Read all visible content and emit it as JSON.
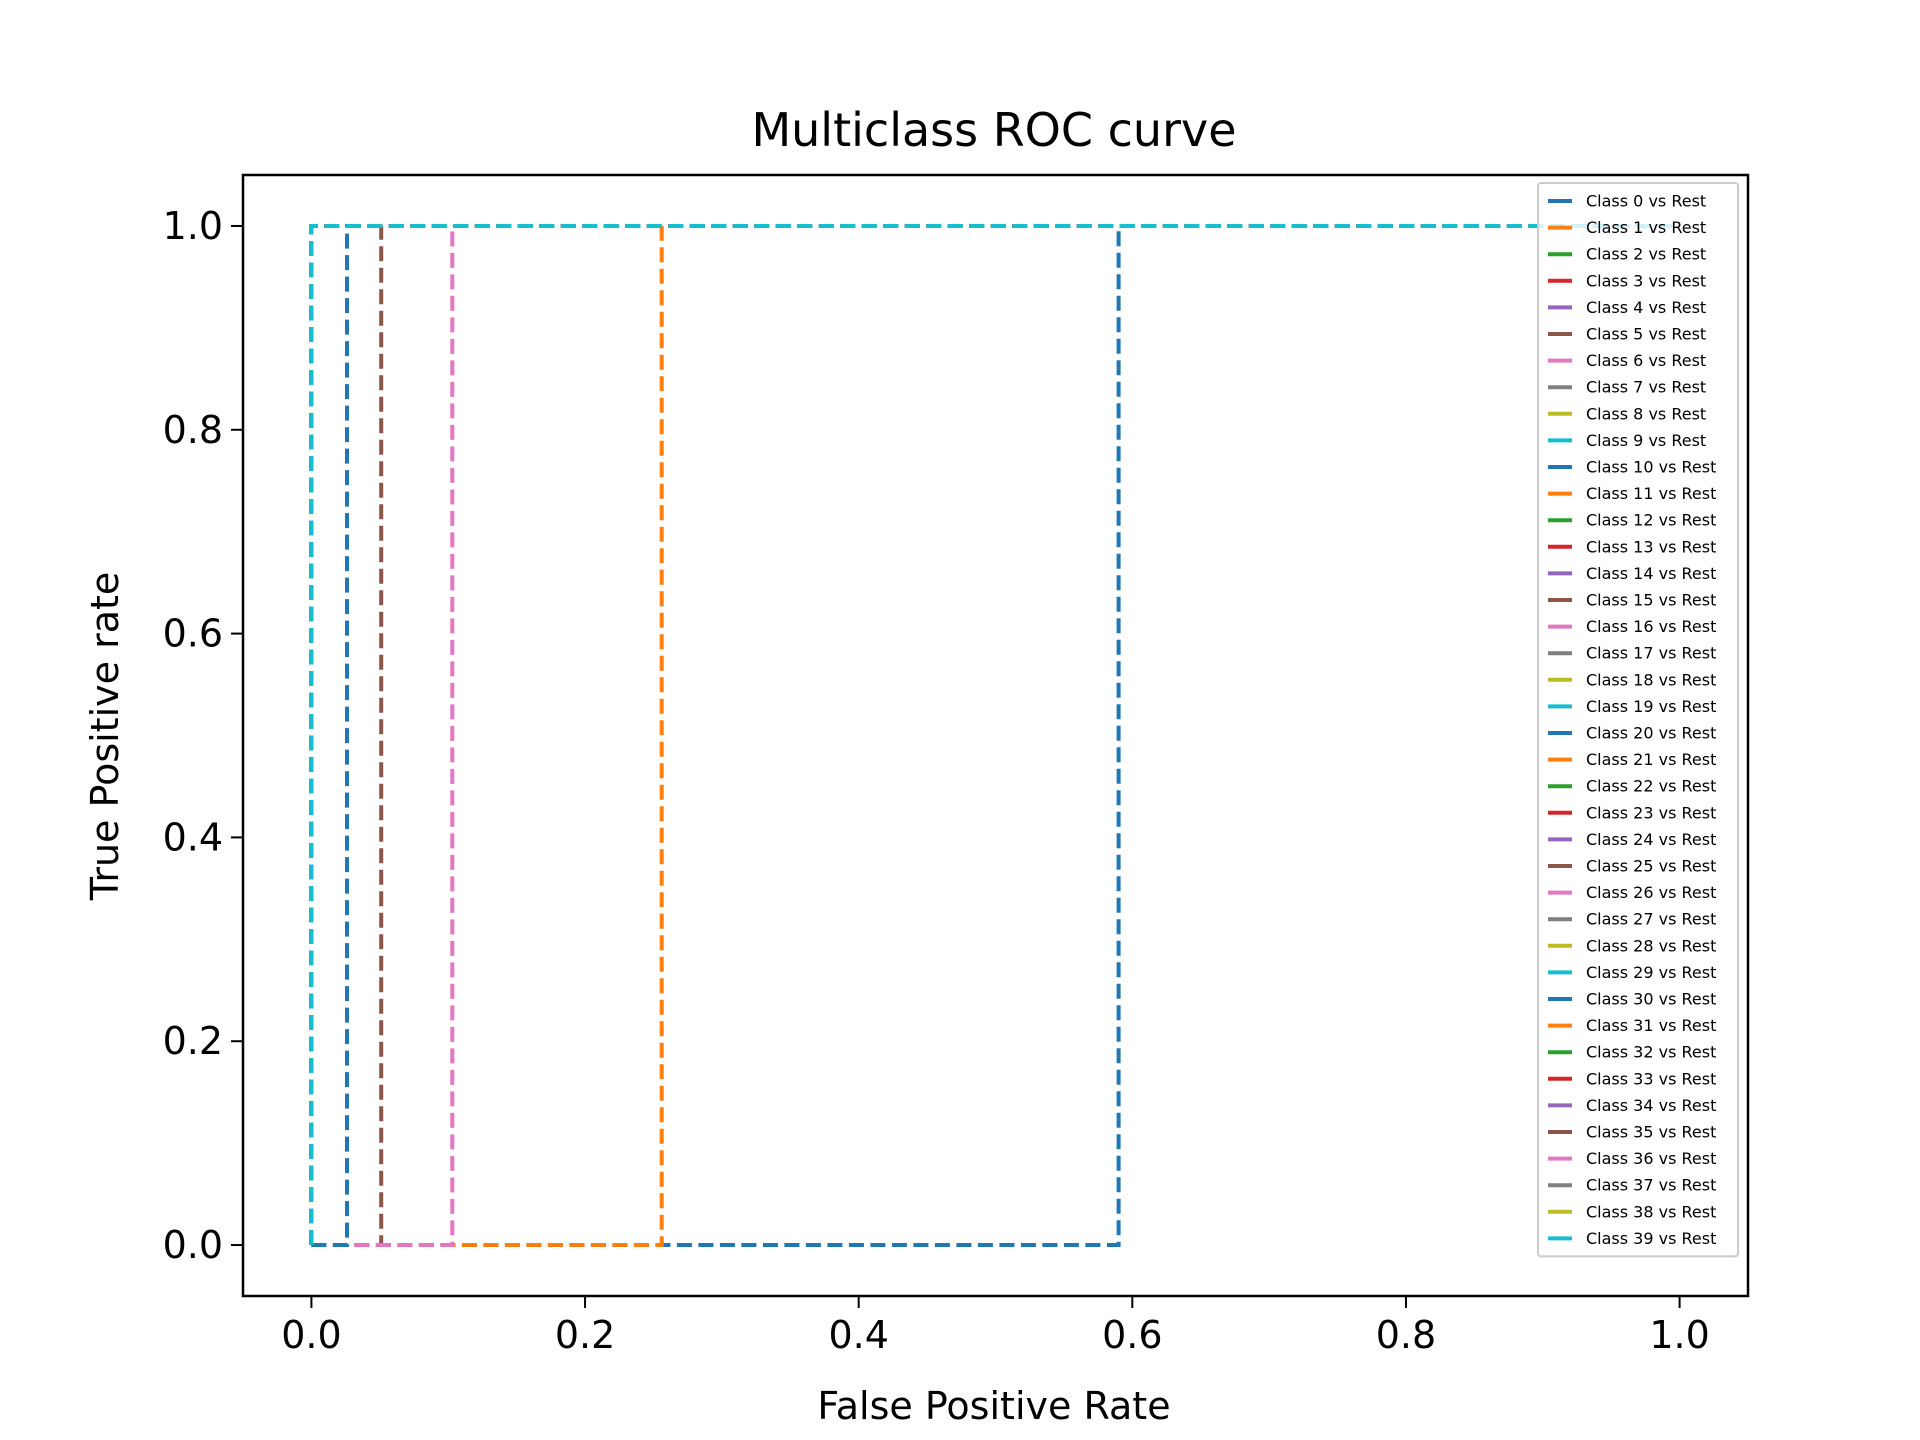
{
  "chart_data": {
    "type": "line",
    "title": "Multiclass ROC curve",
    "xlabel": "False Positive Rate",
    "ylabel": "True Positive rate",
    "xlim": [
      -0.05,
      1.05
    ],
    "ylim": [
      -0.05,
      1.05
    ],
    "xticks": [
      "0.0",
      "0.2",
      "0.4",
      "0.6",
      "0.8",
      "1.0"
    ],
    "yticks": [
      "0.0",
      "0.2",
      "0.4",
      "0.6",
      "0.8",
      "1.0"
    ],
    "grid": false,
    "legend_position": "top-right",
    "line_style": "dashed",
    "palette": [
      "#1f77b4",
      "#ff7f0e",
      "#2ca02c",
      "#d62728",
      "#9467bd",
      "#8c564b",
      "#e377c2",
      "#7f7f7f",
      "#bcbd22",
      "#17becf"
    ],
    "series": [
      {
        "name": "Class 0 vs Rest",
        "x": [
          0,
          0.59,
          0.59,
          1
        ],
        "y": [
          0,
          0,
          1,
          1
        ]
      },
      {
        "name": "Class 1 vs Rest",
        "x": [
          0,
          0.256,
          0.256,
          1
        ],
        "y": [
          0,
          0,
          1,
          1
        ]
      },
      {
        "name": "Class 2 vs Rest",
        "x": [
          0,
          0,
          1
        ],
        "y": [
          0,
          1,
          1
        ]
      },
      {
        "name": "Class 3 vs Rest",
        "x": [
          0,
          0,
          1
        ],
        "y": [
          0,
          1,
          1
        ]
      },
      {
        "name": "Class 4 vs Rest",
        "x": [
          0,
          0,
          1
        ],
        "y": [
          0,
          1,
          1
        ]
      },
      {
        "name": "Class 5 vs Rest",
        "x": [
          0,
          0.051,
          0.051,
          1
        ],
        "y": [
          0,
          0,
          1,
          1
        ]
      },
      {
        "name": "Class 6 vs Rest",
        "x": [
          0,
          0.103,
          0.103,
          1
        ],
        "y": [
          0,
          0,
          1,
          1
        ]
      },
      {
        "name": "Class 7 vs Rest",
        "x": [
          0,
          0,
          1
        ],
        "y": [
          0,
          1,
          1
        ]
      },
      {
        "name": "Class 8 vs Rest",
        "x": [
          0,
          0,
          1
        ],
        "y": [
          0,
          1,
          1
        ]
      },
      {
        "name": "Class 9 vs Rest",
        "x": [
          0,
          0,
          1
        ],
        "y": [
          0,
          1,
          1
        ]
      },
      {
        "name": "Class 10 vs Rest",
        "x": [
          0,
          0.026,
          0.026,
          1
        ],
        "y": [
          0,
          0,
          1,
          1
        ]
      },
      {
        "name": "Class 11 vs Rest",
        "x": [
          0,
          0,
          1
        ],
        "y": [
          0,
          1,
          1
        ]
      },
      {
        "name": "Class 12 vs Rest",
        "x": [
          0,
          0,
          1
        ],
        "y": [
          0,
          1,
          1
        ]
      },
      {
        "name": "Class 13 vs Rest",
        "x": [
          0,
          0,
          1
        ],
        "y": [
          0,
          1,
          1
        ]
      },
      {
        "name": "Class 14 vs Rest",
        "x": [
          0,
          0,
          1
        ],
        "y": [
          0,
          1,
          1
        ]
      },
      {
        "name": "Class 15 vs Rest",
        "x": [
          0,
          0,
          1
        ],
        "y": [
          0,
          1,
          1
        ]
      },
      {
        "name": "Class 16 vs Rest",
        "x": [
          0,
          0,
          1
        ],
        "y": [
          0,
          1,
          1
        ]
      },
      {
        "name": "Class 17 vs Rest",
        "x": [
          0,
          0,
          1
        ],
        "y": [
          0,
          1,
          1
        ]
      },
      {
        "name": "Class 18 vs Rest",
        "x": [
          0,
          0,
          1
        ],
        "y": [
          0,
          1,
          1
        ]
      },
      {
        "name": "Class 19 vs Rest",
        "x": [
          0,
          0,
          1
        ],
        "y": [
          0,
          1,
          1
        ]
      },
      {
        "name": "Class 20 vs Rest",
        "x": [
          0,
          0,
          1
        ],
        "y": [
          0,
          1,
          1
        ]
      },
      {
        "name": "Class 21 vs Rest",
        "x": [
          0,
          0,
          1
        ],
        "y": [
          0,
          1,
          1
        ]
      },
      {
        "name": "Class 22 vs Rest",
        "x": [
          0,
          0,
          1
        ],
        "y": [
          0,
          1,
          1
        ]
      },
      {
        "name": "Class 23 vs Rest",
        "x": [
          0,
          0,
          1
        ],
        "y": [
          0,
          1,
          1
        ]
      },
      {
        "name": "Class 24 vs Rest",
        "x": [
          0,
          0,
          1
        ],
        "y": [
          0,
          1,
          1
        ]
      },
      {
        "name": "Class 25 vs Rest",
        "x": [
          0,
          0,
          1
        ],
        "y": [
          0,
          1,
          1
        ]
      },
      {
        "name": "Class 26 vs Rest",
        "x": [
          0,
          0,
          1
        ],
        "y": [
          0,
          1,
          1
        ]
      },
      {
        "name": "Class 27 vs Rest",
        "x": [
          0,
          0,
          1
        ],
        "y": [
          0,
          1,
          1
        ]
      },
      {
        "name": "Class 28 vs Rest",
        "x": [
          0,
          0,
          1
        ],
        "y": [
          0,
          1,
          1
        ]
      },
      {
        "name": "Class 29 vs Rest",
        "x": [
          0,
          0,
          1
        ],
        "y": [
          0,
          1,
          1
        ]
      },
      {
        "name": "Class 30 vs Rest",
        "x": [
          0,
          0,
          1
        ],
        "y": [
          0,
          1,
          1
        ]
      },
      {
        "name": "Class 31 vs Rest",
        "x": [
          0,
          0,
          1
        ],
        "y": [
          0,
          1,
          1
        ]
      },
      {
        "name": "Class 32 vs Rest",
        "x": [
          0,
          0,
          1
        ],
        "y": [
          0,
          1,
          1
        ]
      },
      {
        "name": "Class 33 vs Rest",
        "x": [
          0,
          0,
          1
        ],
        "y": [
          0,
          1,
          1
        ]
      },
      {
        "name": "Class 34 vs Rest",
        "x": [
          0,
          0,
          1
        ],
        "y": [
          0,
          1,
          1
        ]
      },
      {
        "name": "Class 35 vs Rest",
        "x": [
          0,
          0,
          1
        ],
        "y": [
          0,
          1,
          1
        ]
      },
      {
        "name": "Class 36 vs Rest",
        "x": [
          0,
          0,
          1
        ],
        "y": [
          0,
          1,
          1
        ]
      },
      {
        "name": "Class 37 vs Rest",
        "x": [
          0,
          0,
          1
        ],
        "y": [
          0,
          1,
          1
        ]
      },
      {
        "name": "Class 38 vs Rest",
        "x": [
          0,
          0,
          1
        ],
        "y": [
          0,
          1,
          1
        ]
      },
      {
        "name": "Class 39 vs Rest",
        "x": [
          0,
          0,
          1
        ],
        "y": [
          0,
          1,
          1
        ]
      }
    ]
  }
}
